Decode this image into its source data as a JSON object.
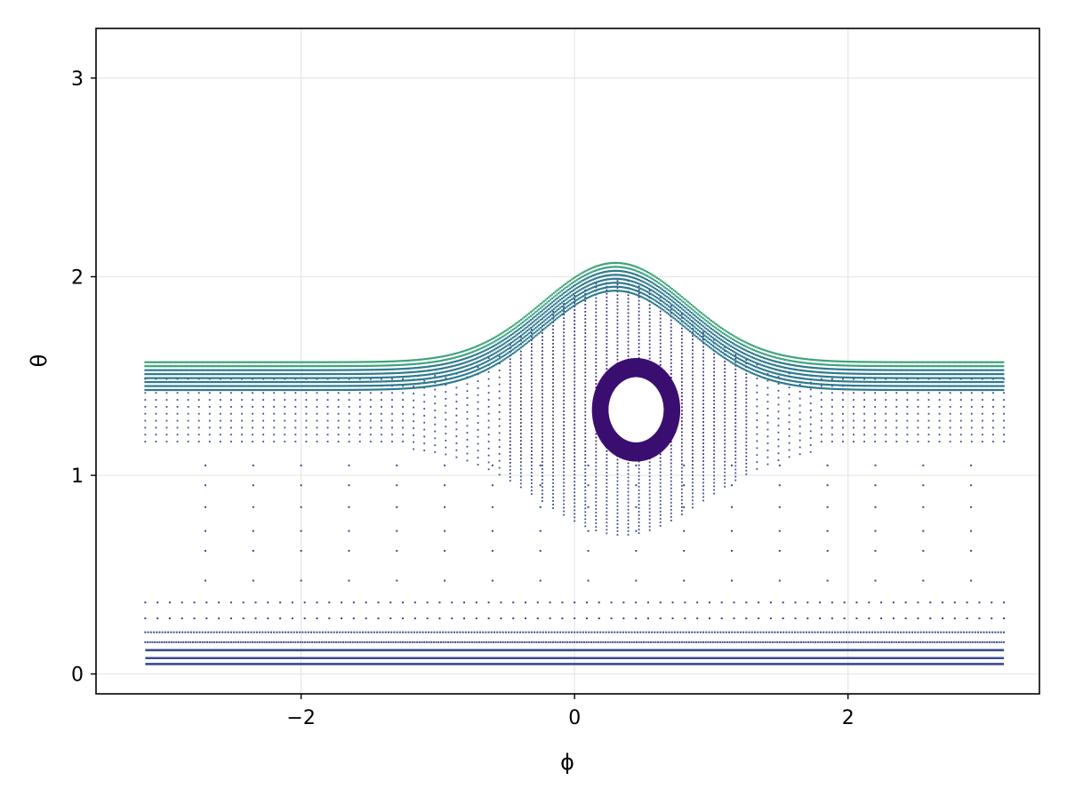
{
  "chart_data": {
    "type": "scatter",
    "title": "",
    "xlabel": "ϕ",
    "ylabel": "θ",
    "xlim": [
      -3.5,
      3.4
    ],
    "ylim": [
      -0.1,
      3.25
    ],
    "x_ticks": [
      -2,
      0,
      2
    ],
    "y_ticks": [
      0,
      1,
      2,
      3
    ],
    "x_tick_labels": [
      "−2",
      "0",
      "2"
    ],
    "y_tick_labels": [
      "0",
      "1",
      "2",
      "3"
    ],
    "grid": true,
    "legend": "none",
    "x_range": [
      -3.14,
      3.14
    ],
    "series": [
      {
        "description_values": "dense horizontal bands near bottom",
        "points_theta": [
          0.05,
          0.08,
          0.12,
          0.16,
          0.21
        ]
      },
      {
        "points_theta": [
          0.28,
          0.36,
          0.47,
          0.62,
          0.72,
          0.84,
          0.95,
          1.05,
          1.18
        ]
      }
    ],
    "upper_band": {
      "theta_base": 1.57,
      "peak_phi": 0.3,
      "peak_theta": 2.07,
      "width": 0.75
    },
    "hole": {
      "center_phi": 0.45,
      "center_theta": 1.33,
      "rx": 0.21,
      "ry": 0.17
    },
    "colors": {
      "dark": "#3b0f70",
      "mid": "#3a4c8c",
      "teal": "#2a788e",
      "green": "#3aa37a",
      "grid": "#e6e6e6",
      "axis": "#000000"
    }
  }
}
